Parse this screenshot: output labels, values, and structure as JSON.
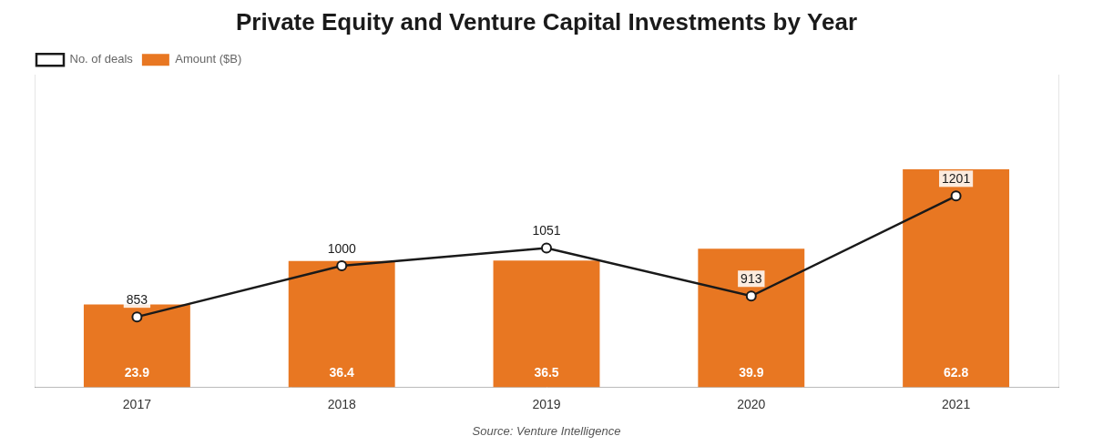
{
  "chart_data": {
    "type": "bar",
    "title": "Private Equity and Venture Capital Investments by Year",
    "categories": [
      "2017",
      "2018",
      "2019",
      "2020",
      "2021"
    ],
    "series": [
      {
        "name": "Amount ($B)",
        "type": "bar",
        "color": "#E87722",
        "values": [
          23.9,
          36.4,
          36.5,
          39.9,
          62.8
        ]
      },
      {
        "name": "No. of deals",
        "type": "line",
        "axis": "y2",
        "color": "#1a1a1a",
        "marker": "circle",
        "line_style": "solid",
        "values": [
          853,
          1000,
          1051,
          913,
          1201
        ]
      }
    ],
    "ylim": [
      0,
      90
    ],
    "y2lim": [
      650,
      1550
    ],
    "tick_labels": "x",
    "grid": false,
    "legend": "upper left",
    "data_labels": true,
    "annotations": [
      "Source: Venture Intelligence"
    ]
  }
}
